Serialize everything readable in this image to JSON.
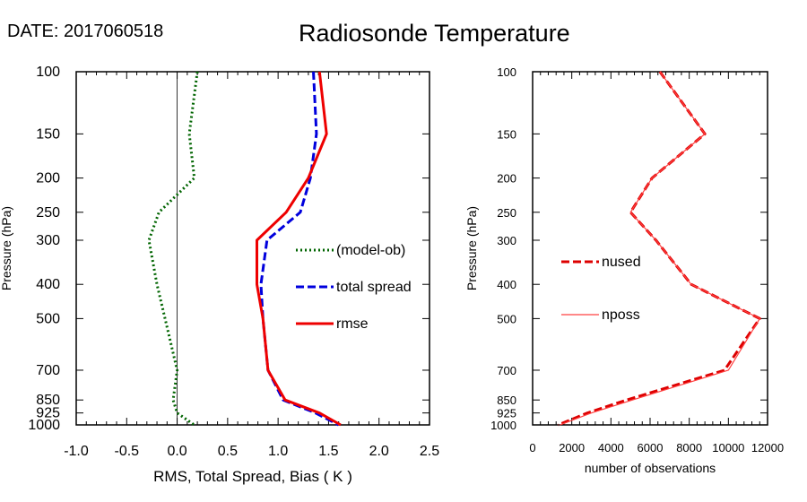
{
  "header": {
    "date_label": "DATE: 2017060518",
    "title": "Radiosonde Temperature"
  },
  "chart_data": [
    {
      "type": "line",
      "ylabel": "Pressure (hPa)",
      "xlabel": "RMS, Total Spread, Bias ( K )",
      "xlim": [
        -1.0,
        2.5
      ],
      "ylim": [
        1000,
        100
      ],
      "y_scale": "log",
      "x_ticks": [
        "-1.0",
        "-0.5",
        "0.0",
        "0.5",
        "1.0",
        "1.5",
        "2.0",
        "2.5"
      ],
      "y_ticks": [
        "100",
        "150",
        "200",
        "250",
        "300",
        "400",
        "500",
        "700",
        "850",
        "925",
        "1000"
      ],
      "legend_position": "right-middle",
      "reference_line_x": 0,
      "series": [
        {
          "name": "(model-ob)",
          "color": "#006400",
          "style": "dotted",
          "points": [
            [
              0.2,
              100
            ],
            [
              0.12,
              150
            ],
            [
              0.17,
              200
            ],
            [
              -0.18,
              250
            ],
            [
              -0.28,
              300
            ],
            [
              -0.2,
              400
            ],
            [
              -0.12,
              500
            ],
            [
              0.0,
              700
            ],
            [
              -0.04,
              850
            ],
            [
              0.0,
              925
            ],
            [
              0.17,
              1000
            ]
          ]
        },
        {
          "name": "total spread",
          "color": "#0000dd",
          "style": "dashed",
          "points": [
            [
              1.35,
              100
            ],
            [
              1.38,
              150
            ],
            [
              1.32,
              200
            ],
            [
              1.22,
              250
            ],
            [
              0.89,
              300
            ],
            [
              0.83,
              400
            ],
            [
              0.85,
              500
            ],
            [
              0.9,
              700
            ],
            [
              1.05,
              850
            ],
            [
              1.37,
              925
            ],
            [
              1.6,
              1000
            ]
          ]
        },
        {
          "name": "rmse",
          "color": "#ee0000",
          "style": "solid",
          "points": [
            [
              1.41,
              100
            ],
            [
              1.48,
              150
            ],
            [
              1.3,
              200
            ],
            [
              1.08,
              250
            ],
            [
              0.79,
              300
            ],
            [
              0.79,
              400
            ],
            [
              0.85,
              500
            ],
            [
              0.9,
              700
            ],
            [
              1.07,
              850
            ],
            [
              1.41,
              925
            ],
            [
              1.62,
              1000
            ]
          ]
        }
      ]
    },
    {
      "type": "line",
      "ylabel": "Pressure (hPa)",
      "xlabel": "number of observations",
      "xlim": [
        0,
        12000
      ],
      "ylim": [
        1000,
        100
      ],
      "y_scale": "log",
      "x_ticks": [
        "0",
        "2000",
        "4000",
        "6000",
        "8000",
        "10000",
        "12000"
      ],
      "y_ticks": [
        "100",
        "150",
        "200",
        "250",
        "300",
        "400",
        "500",
        "700",
        "850",
        "925",
        "1000"
      ],
      "legend_position": "left-middle",
      "series": [
        {
          "name": "nused",
          "color": "#dd0000",
          "style": "dashed",
          "points": [
            [
              6500,
              100
            ],
            [
              8800,
              150
            ],
            [
              6100,
              200
            ],
            [
              5000,
              250
            ],
            [
              6300,
              300
            ],
            [
              8100,
              400
            ],
            [
              11600,
              500
            ],
            [
              9800,
              700
            ],
            [
              4800,
              850
            ],
            [
              2800,
              925
            ],
            [
              1300,
              1000
            ]
          ]
        },
        {
          "name": "nposs",
          "color": "#ff4040",
          "style": "solid",
          "points": [
            [
              6500,
              100
            ],
            [
              8800,
              150
            ],
            [
              6100,
              200
            ],
            [
              5000,
              250
            ],
            [
              6300,
              300
            ],
            [
              8100,
              400
            ],
            [
              11600,
              500
            ],
            [
              10000,
              700
            ],
            [
              5100,
              850
            ],
            [
              3000,
              925
            ],
            [
              1400,
              1000
            ]
          ]
        }
      ]
    }
  ]
}
